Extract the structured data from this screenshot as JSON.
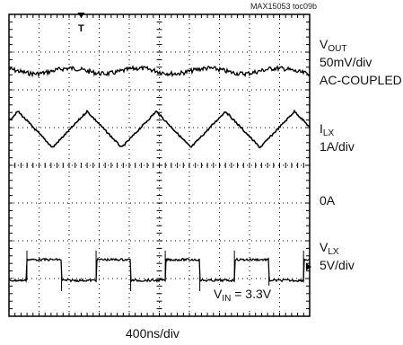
{
  "figure_id": "MAX15053 toc09b",
  "chart_data": {
    "type": "line",
    "time_per_div": "400ns/div",
    "grid": {
      "h_divisions": 10,
      "v_divisions": 8,
      "on": true
    },
    "trigger_marker": "T",
    "channels": [
      {
        "symbol": "V",
        "subscript": "OUT",
        "scale": "50mV/div",
        "coupling": "AC-COUPLED",
        "waveform": "ripple",
        "color": "#000000"
      },
      {
        "symbol": "I",
        "subscript": "LX",
        "scale": "1A/div",
        "waveform": "triangle",
        "peak_to_peak_div": 0.6,
        "color": "#000000"
      },
      {
        "label": "0A",
        "waveform": "reference"
      },
      {
        "symbol": "V",
        "subscript": "LX",
        "scale": "5V/div",
        "waveform": "switching",
        "high_div": 0.0,
        "low_div": -0.55,
        "color": "#000000"
      }
    ],
    "annotation": {
      "prefix": "V",
      "subscript": "IN",
      "text": " = 3.3V"
    }
  }
}
